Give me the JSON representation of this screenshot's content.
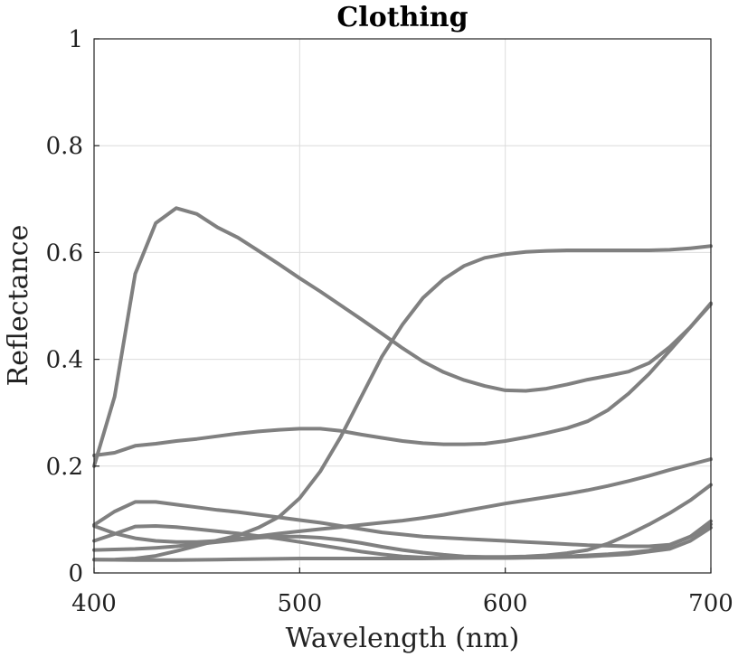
{
  "chart_data": {
    "type": "line",
    "title": "Clothing",
    "xlabel": "Wavelength (nm)",
    "ylabel": "Reflectance",
    "xlim": [
      400,
      700
    ],
    "ylim": [
      0,
      1
    ],
    "xticks": [
      400,
      500,
      600,
      700
    ],
    "yticks": [
      0,
      0.2,
      0.4,
      0.6,
      0.8,
      1
    ],
    "xtick_labels": [
      "400",
      "500",
      "600",
      "700"
    ],
    "ytick_labels": [
      "0",
      "0.2",
      "0.4",
      "0.6",
      "0.8",
      "1"
    ],
    "grid": true,
    "line_color": "#808080",
    "series": [
      {
        "x": [
          400,
          410,
          420,
          430,
          440,
          450,
          460,
          470,
          480,
          490,
          500,
          510,
          520,
          530,
          540,
          550,
          560,
          570,
          580,
          590,
          600,
          610,
          620,
          630,
          640,
          650,
          660,
          670,
          680,
          690,
          700
        ],
        "values": [
          0.2,
          0.33,
          0.56,
          0.655,
          0.683,
          0.672,
          0.647,
          0.628,
          0.603,
          0.578,
          0.552,
          0.527,
          0.501,
          0.475,
          0.448,
          0.421,
          0.396,
          0.376,
          0.361,
          0.35,
          0.342,
          0.341,
          0.345,
          0.353,
          0.362,
          0.369,
          0.377,
          0.393,
          0.423,
          0.46,
          0.505
        ]
      },
      {
        "x": [
          400,
          410,
          420,
          430,
          440,
          450,
          460,
          470,
          480,
          490,
          500,
          510,
          520,
          530,
          540,
          550,
          560,
          570,
          580,
          590,
          600,
          610,
          620,
          630,
          640,
          650,
          660,
          670,
          680,
          690,
          700
        ],
        "values": [
          0.025,
          0.025,
          0.027,
          0.032,
          0.041,
          0.051,
          0.061,
          0.07,
          0.085,
          0.105,
          0.14,
          0.19,
          0.255,
          0.33,
          0.405,
          0.465,
          0.515,
          0.55,
          0.575,
          0.59,
          0.597,
          0.601,
          0.603,
          0.604,
          0.604,
          0.604,
          0.604,
          0.604,
          0.605,
          0.608,
          0.612
        ]
      },
      {
        "x": [
          400,
          410,
          420,
          430,
          440,
          450,
          460,
          470,
          480,
          490,
          500,
          510,
          520,
          530,
          540,
          550,
          560,
          570,
          580,
          590,
          600,
          610,
          620,
          630,
          640,
          650,
          660,
          670,
          680,
          690,
          700
        ],
        "values": [
          0.22,
          0.225,
          0.238,
          0.242,
          0.247,
          0.251,
          0.256,
          0.261,
          0.265,
          0.268,
          0.27,
          0.27,
          0.266,
          0.259,
          0.253,
          0.247,
          0.243,
          0.241,
          0.241,
          0.242,
          0.247,
          0.254,
          0.262,
          0.271,
          0.284,
          0.305,
          0.336,
          0.373,
          0.416,
          0.46,
          0.503
        ]
      },
      {
        "x": [
          400,
          410,
          420,
          430,
          440,
          450,
          460,
          470,
          480,
          490,
          500,
          510,
          520,
          530,
          540,
          550,
          560,
          570,
          580,
          590,
          600,
          610,
          620,
          630,
          640,
          650,
          660,
          670,
          680,
          690,
          700
        ],
        "values": [
          0.09,
          0.115,
          0.133,
          0.133,
          0.128,
          0.123,
          0.118,
          0.114,
          0.109,
          0.104,
          0.099,
          0.094,
          0.088,
          0.082,
          0.076,
          0.072,
          0.068,
          0.066,
          0.064,
          0.062,
          0.06,
          0.058,
          0.056,
          0.054,
          0.052,
          0.051,
          0.05,
          0.05,
          0.053,
          0.068,
          0.097
        ]
      },
      {
        "x": [
          400,
          410,
          420,
          430,
          440,
          450,
          460,
          470,
          480,
          490,
          500,
          510,
          520,
          530,
          540,
          550,
          560,
          570,
          580,
          590,
          600,
          610,
          620,
          630,
          640,
          650,
          660,
          670,
          680,
          690,
          700
        ],
        "values": [
          0.06,
          0.073,
          0.087,
          0.088,
          0.086,
          0.082,
          0.078,
          0.074,
          0.069,
          0.064,
          0.058,
          0.052,
          0.046,
          0.04,
          0.035,
          0.031,
          0.029,
          0.028,
          0.028,
          0.028,
          0.028,
          0.029,
          0.03,
          0.031,
          0.033,
          0.035,
          0.038,
          0.042,
          0.052,
          0.068,
          0.091
        ]
      },
      {
        "x": [
          400,
          410,
          420,
          430,
          440,
          450,
          460,
          470,
          480,
          490,
          500,
          510,
          520,
          530,
          540,
          550,
          560,
          570,
          580,
          590,
          600,
          610,
          620,
          630,
          640,
          650,
          660,
          670,
          680,
          690,
          700
        ],
        "values": [
          0.088,
          0.074,
          0.065,
          0.06,
          0.058,
          0.058,
          0.06,
          0.064,
          0.069,
          0.074,
          0.078,
          0.082,
          0.086,
          0.09,
          0.094,
          0.098,
          0.103,
          0.109,
          0.116,
          0.123,
          0.13,
          0.136,
          0.142,
          0.148,
          0.155,
          0.163,
          0.172,
          0.182,
          0.193,
          0.203,
          0.213
        ]
      },
      {
        "x": [
          400,
          410,
          420,
          430,
          440,
          450,
          460,
          470,
          480,
          490,
          500,
          510,
          520,
          530,
          540,
          550,
          560,
          570,
          580,
          590,
          600,
          610,
          620,
          630,
          640,
          650,
          660,
          670,
          680,
          690,
          700
        ],
        "values": [
          0.043,
          0.044,
          0.045,
          0.047,
          0.05,
          0.054,
          0.058,
          0.062,
          0.066,
          0.068,
          0.068,
          0.066,
          0.062,
          0.056,
          0.049,
          0.043,
          0.038,
          0.034,
          0.031,
          0.03,
          0.03,
          0.031,
          0.033,
          0.037,
          0.043,
          0.055,
          0.072,
          0.091,
          0.112,
          0.136,
          0.165
        ]
      },
      {
        "x": [
          400,
          420,
          440,
          460,
          480,
          500,
          520,
          540,
          560,
          580,
          600,
          620,
          640,
          660,
          680,
          690,
          700
        ],
        "values": [
          0.025,
          0.024,
          0.024,
          0.025,
          0.026,
          0.027,
          0.027,
          0.027,
          0.027,
          0.028,
          0.028,
          0.029,
          0.031,
          0.035,
          0.045,
          0.06,
          0.085
        ]
      }
    ]
  }
}
